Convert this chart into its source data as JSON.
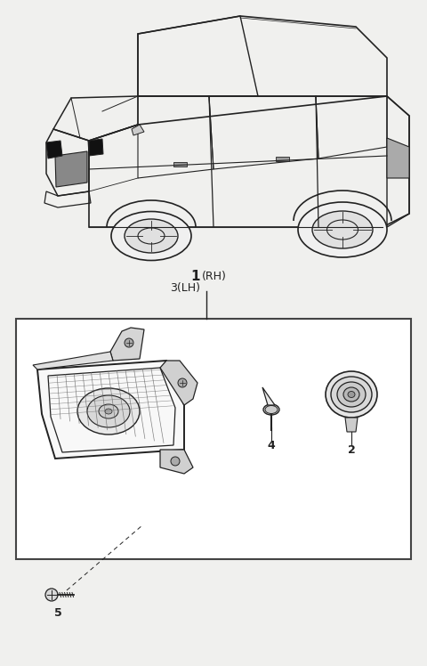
{
  "bg_color": "#f0f0ee",
  "line_color": "#222222",
  "box_color": "#ffffff",
  "label_1": "1",
  "label_1b": "(RH)",
  "label_3": "3(LH)",
  "label_2": "2",
  "label_4": "4",
  "label_5": "5",
  "label_fontsize": 9,
  "label_bold_fontsize": 11
}
